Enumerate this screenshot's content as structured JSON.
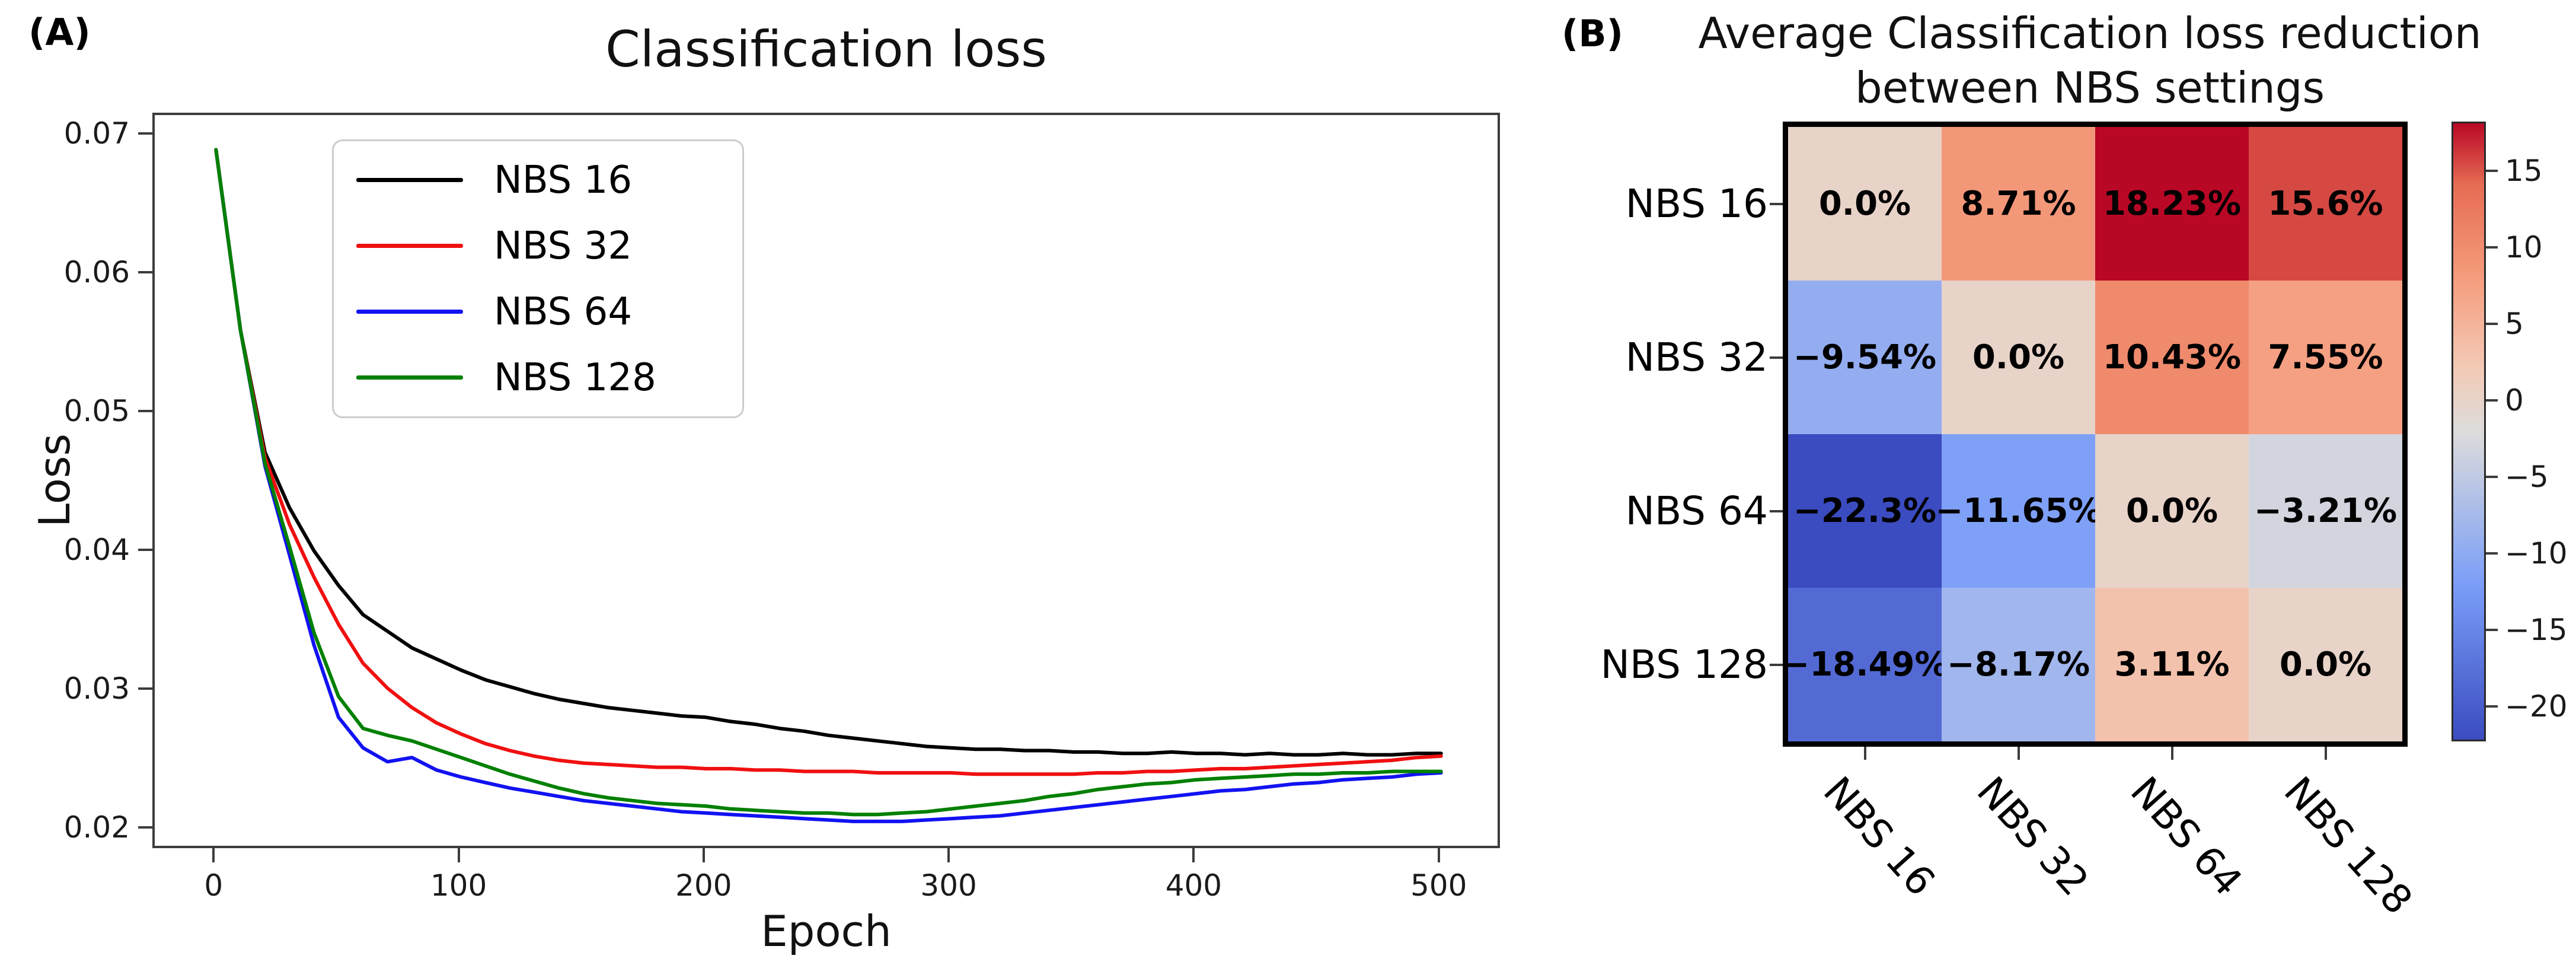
{
  "panels": {
    "a": {
      "label": "(A)"
    },
    "b": {
      "label": "(B)",
      "title_lines": [
        "Average Classification loss reduction",
        "between NBS settings"
      ]
    }
  },
  "chart_data": [
    {
      "type": "line",
      "title": "Classification loss",
      "xlabel": "Epoch",
      "ylabel": "Loss",
      "xlim": [
        -25,
        525
      ],
      "ylim": [
        0.0185,
        0.0715
      ],
      "x_ticks": [
        0,
        100,
        200,
        300,
        400,
        500
      ],
      "y_ticks": [
        0.07,
        0.06,
        0.05,
        0.04,
        0.03,
        0.02
      ],
      "grid": false,
      "legend_position": "upper-left-inset",
      "x": [
        0,
        10,
        20,
        30,
        40,
        50,
        60,
        70,
        80,
        90,
        100,
        110,
        120,
        130,
        140,
        150,
        160,
        170,
        180,
        190,
        200,
        210,
        220,
        230,
        240,
        250,
        260,
        270,
        280,
        290,
        300,
        310,
        320,
        330,
        340,
        350,
        360,
        370,
        380,
        390,
        400,
        410,
        420,
        430,
        440,
        450,
        460,
        470,
        480,
        490,
        500
      ],
      "series": [
        {
          "name": "NBS 16",
          "color": "#000000",
          "values": [
            0.069,
            0.056,
            0.0472,
            0.0432,
            0.0401,
            0.0376,
            0.0355,
            0.0343,
            0.0331,
            0.0323,
            0.0315,
            0.0308,
            0.0303,
            0.0298,
            0.0294,
            0.0291,
            0.0288,
            0.0286,
            0.0284,
            0.0282,
            0.0281,
            0.0278,
            0.0276,
            0.0273,
            0.0271,
            0.0268,
            0.0266,
            0.0264,
            0.0262,
            0.026,
            0.0259,
            0.0258,
            0.0258,
            0.0257,
            0.0257,
            0.0256,
            0.0256,
            0.0255,
            0.0255,
            0.0256,
            0.0255,
            0.0255,
            0.0254,
            0.0255,
            0.0254,
            0.0254,
            0.0255,
            0.0254,
            0.0254,
            0.0255,
            0.0255
          ]
        },
        {
          "name": "NBS 32",
          "color": "#f01010",
          "values": [
            0.069,
            0.056,
            0.0468,
            0.042,
            0.0382,
            0.0348,
            0.032,
            0.0302,
            0.0288,
            0.0277,
            0.0269,
            0.0262,
            0.0257,
            0.0253,
            0.025,
            0.0248,
            0.0247,
            0.0246,
            0.0245,
            0.0245,
            0.0244,
            0.0244,
            0.0243,
            0.0243,
            0.0242,
            0.0242,
            0.0242,
            0.0241,
            0.0241,
            0.0241,
            0.0241,
            0.024,
            0.024,
            0.024,
            0.024,
            0.024,
            0.0241,
            0.0241,
            0.0242,
            0.0242,
            0.0243,
            0.0244,
            0.0244,
            0.0245,
            0.0246,
            0.0247,
            0.0248,
            0.0249,
            0.025,
            0.0252,
            0.0253
          ]
        },
        {
          "name": "NBS 64",
          "color": "#1212f2",
          "values": [
            0.069,
            0.056,
            0.0462,
            0.0398,
            0.0333,
            0.0281,
            0.0259,
            0.0249,
            0.0252,
            0.0243,
            0.0238,
            0.0234,
            0.023,
            0.0227,
            0.0224,
            0.0221,
            0.0219,
            0.0217,
            0.0215,
            0.0213,
            0.0212,
            0.0211,
            0.021,
            0.0209,
            0.0208,
            0.0207,
            0.0206,
            0.0206,
            0.0206,
            0.0207,
            0.0208,
            0.0209,
            0.021,
            0.0212,
            0.0214,
            0.0216,
            0.0218,
            0.022,
            0.0222,
            0.0224,
            0.0226,
            0.0228,
            0.0229,
            0.0231,
            0.0233,
            0.0234,
            0.0236,
            0.0237,
            0.0238,
            0.024,
            0.0241
          ]
        },
        {
          "name": "NBS 128",
          "color": "#008000",
          "values": [
            0.069,
            0.056,
            0.0464,
            0.0404,
            0.0342,
            0.0296,
            0.0273,
            0.0268,
            0.0264,
            0.0258,
            0.0252,
            0.0246,
            0.024,
            0.0235,
            0.023,
            0.0226,
            0.0223,
            0.0221,
            0.0219,
            0.0218,
            0.0217,
            0.0215,
            0.0214,
            0.0213,
            0.0212,
            0.0212,
            0.0211,
            0.0211,
            0.0212,
            0.0213,
            0.0215,
            0.0217,
            0.0219,
            0.0221,
            0.0224,
            0.0226,
            0.0229,
            0.0231,
            0.0233,
            0.0234,
            0.0236,
            0.0237,
            0.0238,
            0.0239,
            0.024,
            0.024,
            0.0241,
            0.0241,
            0.0242,
            0.0242,
            0.0242
          ]
        }
      ]
    },
    {
      "type": "heatmap",
      "title": "Average Classification loss reduction between NBS settings",
      "rows": [
        "NBS 16",
        "NBS 32",
        "NBS 64",
        "NBS 128"
      ],
      "cols": [
        "NBS 16",
        "NBS 32",
        "NBS 64",
        "NBS 128"
      ],
      "values": [
        [
          0.0,
          8.71,
          18.23,
          15.6
        ],
        [
          -9.54,
          0.0,
          10.43,
          7.55
        ],
        [
          -22.3,
          -11.65,
          0.0,
          -3.21
        ],
        [
          -18.49,
          -8.17,
          3.11,
          0.0
        ]
      ],
      "labels": [
        [
          "0.0%",
          "8.71%",
          "18.23%",
          "15.6%"
        ],
        [
          "−9.54%",
          "0.0%",
          "10.43%",
          "7.55%"
        ],
        [
          "−22.3%",
          "−11.65%",
          "0.0%",
          "−3.21%"
        ],
        [
          "−18.49%",
          "−8.17%",
          "3.11%",
          "0.0%"
        ]
      ],
      "colormap": "coolwarm",
      "vmin": -22.3,
      "vmax": 18.23,
      "colorbar_ticks": [
        15,
        10,
        5,
        0,
        -5,
        -10,
        -15,
        -20
      ]
    }
  ]
}
